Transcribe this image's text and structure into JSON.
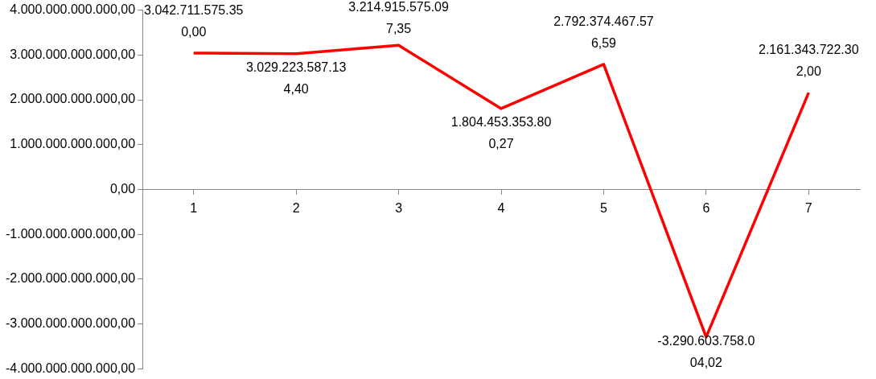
{
  "chart_data": {
    "type": "line",
    "categories": [
      "1",
      "2",
      "3",
      "4",
      "5",
      "6",
      "7"
    ],
    "series": [
      {
        "color": "#ff0000",
        "values": [
          3042711575350.0,
          3029223587134.4,
          3214915575097.35,
          1804453353800.27,
          2792374467576.59,
          -3290603758004.02,
          2161343722302.0
        ],
        "value_labels": [
          "3.042.711.575.350,00",
          "3.029.223.587.134,40",
          "3.214.915.575.097,35",
          "1.804.453.353.800,27",
          "2.792.374.467.576,59",
          "-3.290.603.758.004,02",
          "2.161.343.722.302,00"
        ]
      }
    ],
    "ylim": [
      -4000000000000,
      4000000000000
    ],
    "yticks": [
      {
        "value": -4000000000000,
        "label": "-4.000.000.000.000,00"
      },
      {
        "value": -3000000000000,
        "label": "-3.000.000.000.000,00"
      },
      {
        "value": -2000000000000,
        "label": "-2.000.000.000.000,00"
      },
      {
        "value": -1000000000000,
        "label": "-1.000.000.000.000,00"
      },
      {
        "value": 0,
        "label": "0,00"
      },
      {
        "value": 1000000000000,
        "label": "1.000.000.000.000,00"
      },
      {
        "value": 2000000000000,
        "label": "2.000.000.000.000,00"
      },
      {
        "value": 3000000000000,
        "label": "3.000.000.000.000,00"
      },
      {
        "value": 4000000000000,
        "label": "4.000.000.000.000,00"
      }
    ],
    "grid": false,
    "legend": false,
    "marker": "none",
    "line_style": "solid"
  }
}
